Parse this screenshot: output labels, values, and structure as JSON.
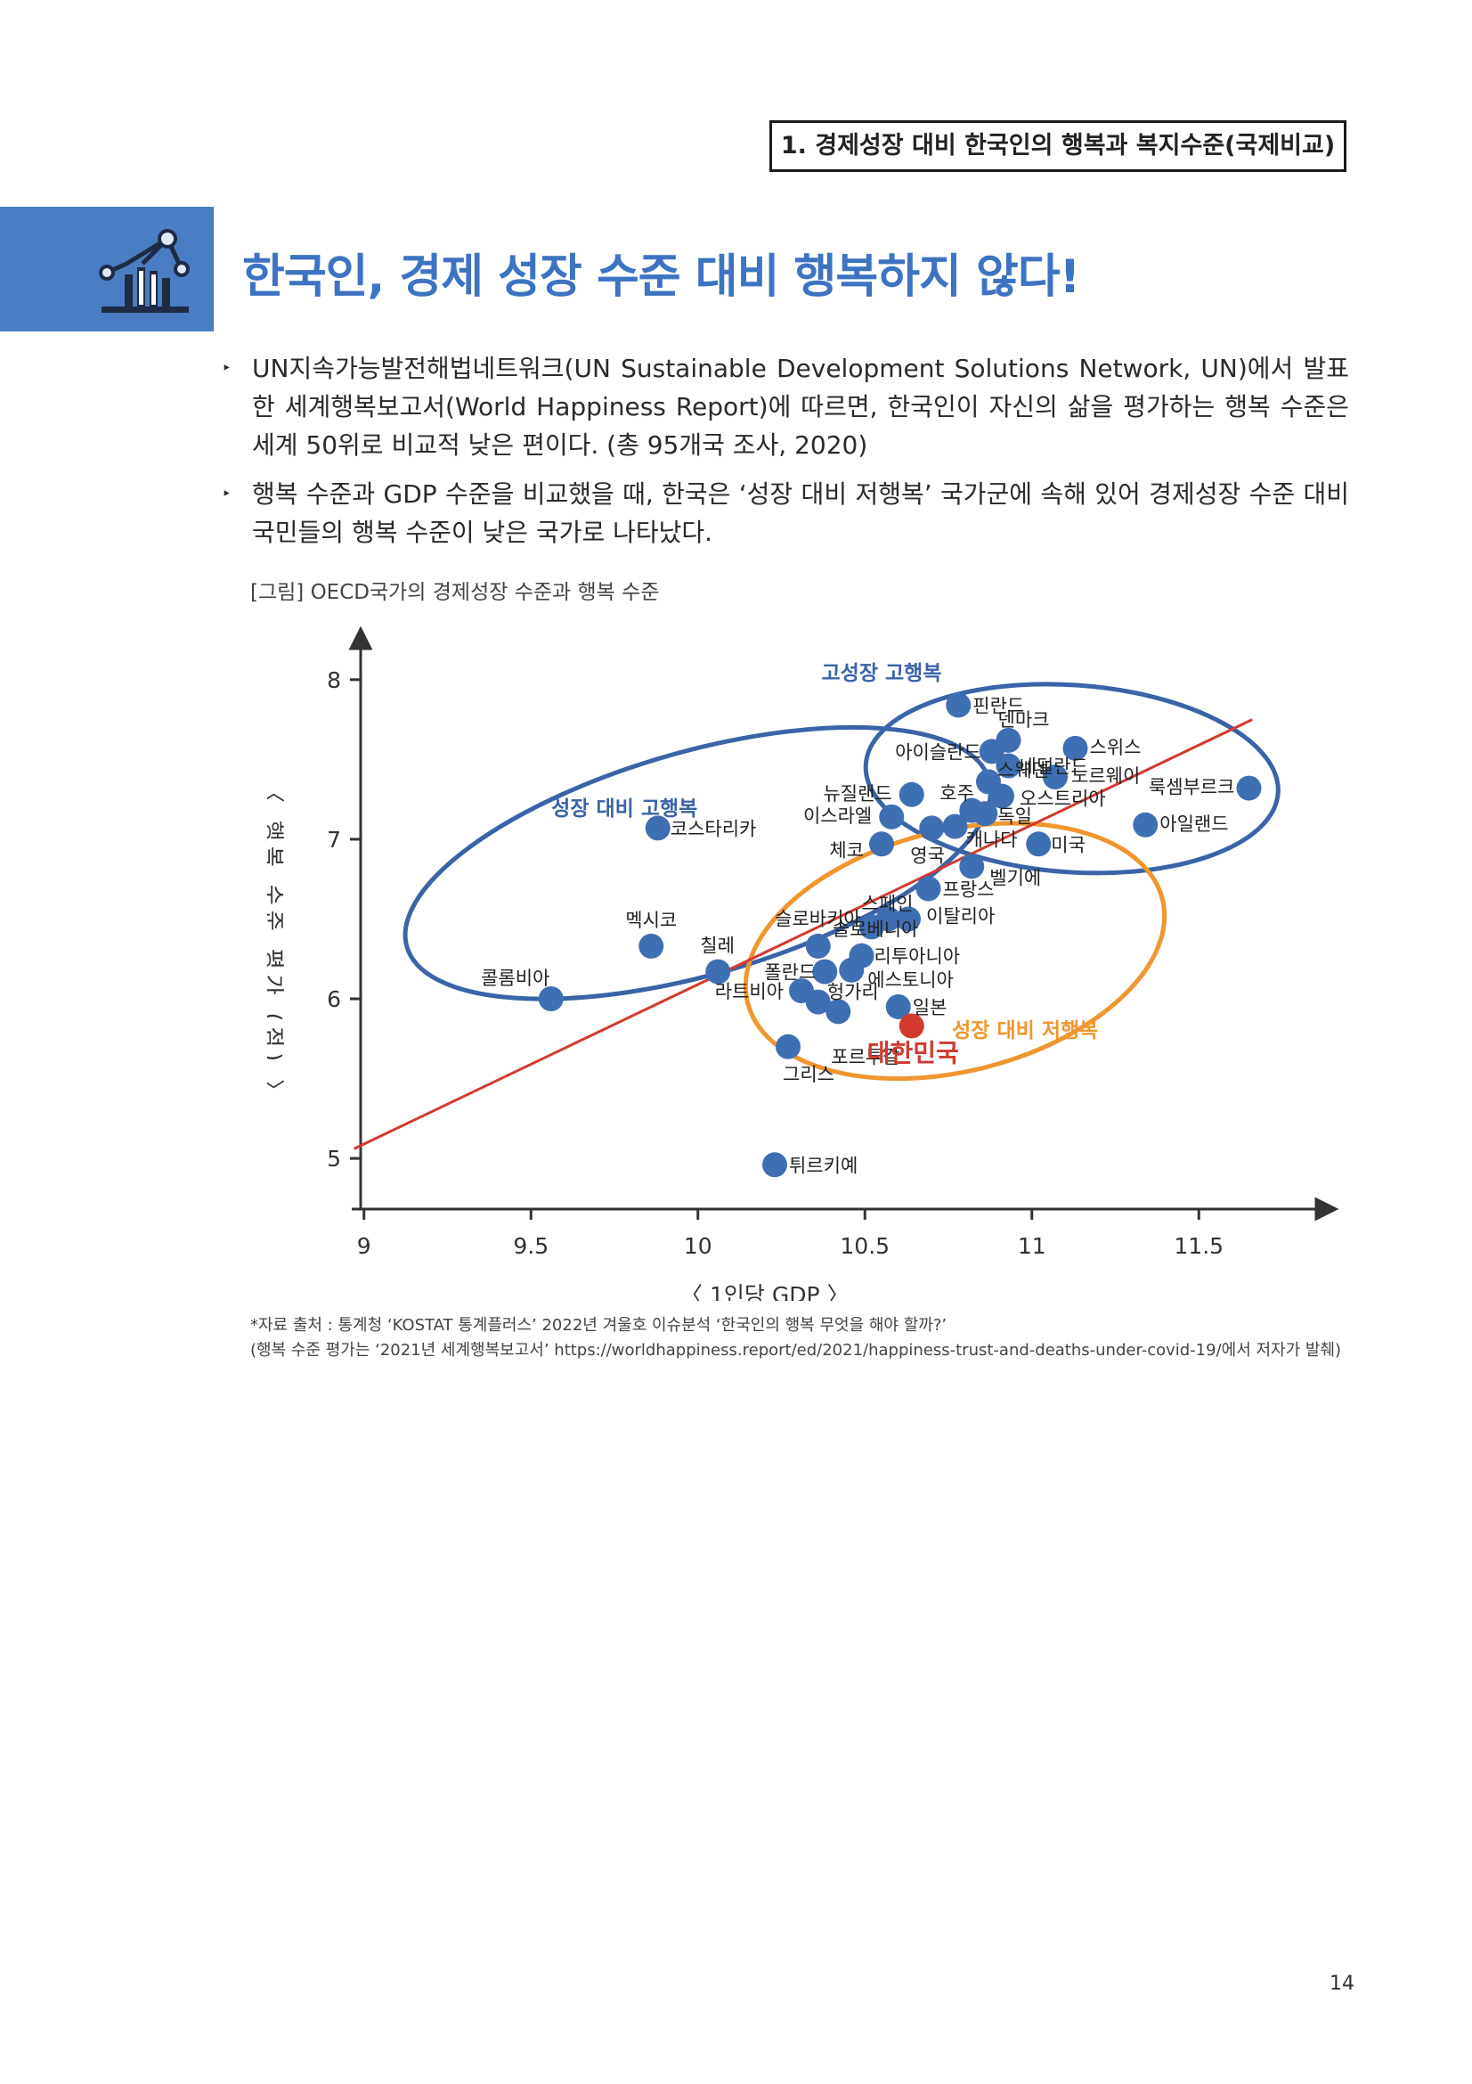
{
  "header": {
    "section_title": "1. 경제성장 대비 한국인의 행복과 복지수준(국제비교)"
  },
  "title_icon": "network-chart-icon",
  "title": "한국인, 경제 성장 수준 대비 행복하지 않다!",
  "bullets": [
    {
      "marker": "‣",
      "text": "UN지속가능발전해법네트워크(UN Sustainable Development Solutions Network, UN)에서 발표한 세계행복보고서(World Happiness Report)에 따르면, 한국인이 자신의 삶을 평가하는 행복 수준은 세계 50위로 비교적 낮은 편이다. (총 95개국 조사, 2020)"
    },
    {
      "marker": "‣",
      "text": "행복 수준과 GDP 수준을 비교했을 때, 한국은 ‘성장 대비 저행복’ 국가군에 속해 있어 경제성장 수준 대비 국민들의 행복 수준이 낮은 국가로 나타났다."
    }
  ],
  "figure_caption": "[그림] OECD국가의 경제성장 수준과 행복 수준",
  "chart_data": {
    "type": "scatter",
    "xlabel": "〈 1인당 GDP 〉",
    "ylabel": "〈 행복 수준 평가 (점) 〉",
    "xlim": [
      8.99,
      11.75
    ],
    "ylim": [
      4.85,
      8.2
    ],
    "xticks": [
      9,
      9.5,
      10,
      10.5,
      11,
      11.5
    ],
    "yticks": [
      5,
      6,
      7,
      8
    ],
    "trend_line": {
      "x": [
        8.97,
        11.66
      ],
      "y": [
        5.06,
        7.75
      ]
    },
    "groups": [
      {
        "name": "고성장 고행복",
        "color": "#3a63a8"
      },
      {
        "name": "성장 대비 고행복",
        "color": "#3a63a8"
      },
      {
        "name": "성장 대비 저행복",
        "color": "#f0962e"
      }
    ],
    "colors": {
      "point": "#3f6fb3",
      "highlight": "#d23a2f",
      "trend": "#d23a2f"
    },
    "points": [
      {
        "name": "핀란드",
        "x": 10.78,
        "y": 7.84
      },
      {
        "name": "덴마크",
        "x": 10.93,
        "y": 7.62
      },
      {
        "name": "스위스",
        "x": 11.13,
        "y": 7.57
      },
      {
        "name": "아이슬란드",
        "x": 10.88,
        "y": 7.55
      },
      {
        "name": "네덜란드",
        "x": 10.93,
        "y": 7.46
      },
      {
        "name": "스웨덴",
        "x": 10.87,
        "y": 7.36
      },
      {
        "name": "노르웨이",
        "x": 11.07,
        "y": 7.39
      },
      {
        "name": "룩셈부르크",
        "x": 11.65,
        "y": 7.32
      },
      {
        "name": "호주",
        "x": 10.82,
        "y": 7.18
      },
      {
        "name": "오스트리아",
        "x": 10.91,
        "y": 7.27
      },
      {
        "name": "뉴질랜드",
        "x": 10.64,
        "y": 7.28
      },
      {
        "name": "독일",
        "x": 10.86,
        "y": 7.16
      },
      {
        "name": "이스라엘",
        "x": 10.58,
        "y": 7.14
      },
      {
        "name": "아일랜드",
        "x": 11.34,
        "y": 7.09
      },
      {
        "name": "영국",
        "x": 10.7,
        "y": 7.07
      },
      {
        "name": "캐나다",
        "x": 10.77,
        "y": 7.08
      },
      {
        "name": "코스타리카",
        "x": 9.88,
        "y": 7.07
      },
      {
        "name": "체코",
        "x": 10.55,
        "y": 6.97
      },
      {
        "name": "미국",
        "x": 11.02,
        "y": 6.97
      },
      {
        "name": "벨기에",
        "x": 10.82,
        "y": 6.83
      },
      {
        "name": "프랑스",
        "x": 10.69,
        "y": 6.69
      },
      {
        "name": "스페인",
        "x": 10.57,
        "y": 6.5
      },
      {
        "name": "슬로바키아",
        "x": 10.52,
        "y": 6.45
      },
      {
        "name": "이탈리아",
        "x": 10.63,
        "y": 6.5
      },
      {
        "name": "멕시코",
        "x": 9.86,
        "y": 6.33
      },
      {
        "name": "슬로베니아",
        "x": 10.36,
        "y": 6.33
      },
      {
        "name": "리투아니아",
        "x": 10.49,
        "y": 6.27
      },
      {
        "name": "칠레",
        "x": 10.06,
        "y": 6.17
      },
      {
        "name": "폴란드",
        "x": 10.38,
        "y": 6.17
      },
      {
        "name": "에스토니아",
        "x": 10.46,
        "y": 6.18
      },
      {
        "name": "콜롬비아",
        "x": 9.56,
        "y": 6.0
      },
      {
        "name": "라트비아",
        "x": 10.31,
        "y": 6.05
      },
      {
        "name": "헝가리",
        "x": 10.36,
        "y": 5.98
      },
      {
        "name": "일본",
        "x": 10.6,
        "y": 5.95
      },
      {
        "name": "포르투갈",
        "x": 10.42,
        "y": 5.92
      },
      {
        "name": "대한민국",
        "x": 10.64,
        "y": 5.83,
        "highlight": true
      },
      {
        "name": "그리스",
        "x": 10.27,
        "y": 5.7
      },
      {
        "name": "튀르키예",
        "x": 10.23,
        "y": 4.96
      }
    ]
  },
  "source": {
    "line1": "*자료 출처 : 통계청 ‘KOSTAT 통계플러스’ 2022년 겨울호 이슈분석 ‘한국인의 행복 무엇을 해야 할까?’",
    "line2": "(행복 수준 평가는 ‘2021년 세계행복보고서’ https://worldhappiness.report/ed/2021/happiness-trust-and-deaths-under-covid-19/에서 저자가 발췌)"
  },
  "page_number": "14"
}
